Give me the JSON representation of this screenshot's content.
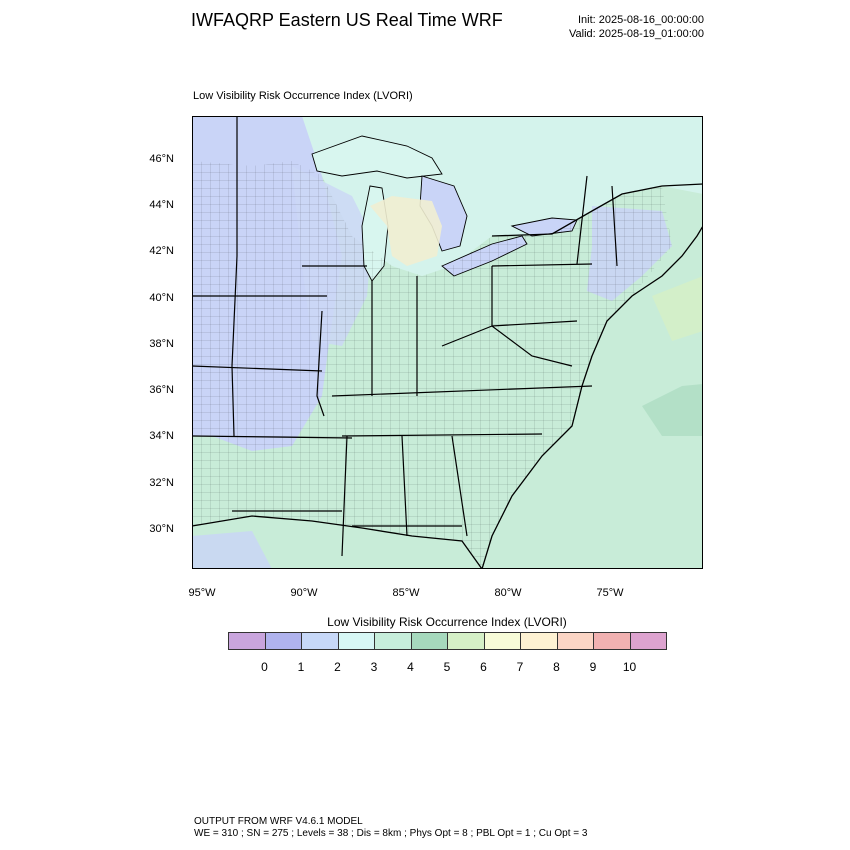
{
  "header": {
    "title": "IWFAQRP Eastern US Real Time WRF",
    "init": "Init: 2025-08-16_00:00:00",
    "valid": "Valid: 2025-08-19_01:00:00"
  },
  "panel": {
    "title": "Low Visibility Risk Occurrence Index   (LVORI)"
  },
  "map": {
    "lat_labels": [
      "46°N",
      "44°N",
      "42°N",
      "40°N",
      "38°N",
      "36°N",
      "34°N",
      "32°N",
      "30°N"
    ],
    "lon_labels": [
      "95°W",
      "90°W",
      "85°W",
      "80°W",
      "75°W"
    ],
    "background_color": "#c8ecd8",
    "lake_color": "#d8f6ef",
    "low_index_color": "#c9d4f7",
    "mid_index_color": "#d6f6f4",
    "border_color": "#000000"
  },
  "colorbar": {
    "title": "Low Visibility Risk Occurrence Index  (LVORI)",
    "colors": [
      "#c9a5dd",
      "#b0b3ee",
      "#c7d8f8",
      "#d7f7f5",
      "#c7eedb",
      "#a6d9bd",
      "#d5f0c7",
      "#f7fbd8",
      "#fef2d3",
      "#fbd5c5",
      "#f1b1b1",
      "#dda3cf"
    ],
    "labels": [
      "0",
      "1",
      "2",
      "3",
      "4",
      "5",
      "6",
      "7",
      "8",
      "9",
      "10"
    ]
  },
  "footer": {
    "line1": "OUTPUT FROM WRF V4.6.1 MODEL",
    "line2": "WE = 310 ; SN = 275 ; Levels = 38 ; Dis = 8km ; Phys Opt = 8 ; PBL Opt = 1 ; Cu Opt = 3"
  }
}
